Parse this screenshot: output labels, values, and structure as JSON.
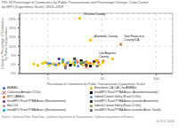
{
  "chart_data": {
    "type": "scatter",
    "title": "FIG 18 Percentage of Commuters by Public Transportation and Percentage Change, Color-Coded",
    "subtitle": "by MPO (Logarithmic Scale), 2013–2018",
    "xlabel": "Percentage of Commuters by Public Transportation (Logarithmic Scale)",
    "ylabel": "Change in Percentage of Commuters\nby Public Transportation",
    "source": "Source: California Public Road Data, California Department of Transportation, California Department of Finance",
    "figure_label": "IG 18  IC-13026",
    "log": "x",
    "grid": true,
    "legend": "bottom",
    "xlim": [
      0.3,
      200
    ],
    "ylim": [
      -5,
      28
    ],
    "xticks": [
      1,
      10,
      100
    ],
    "yticks": [
      {
        "value": -5,
        "label": "-5%"
      },
      {
        "value": 0,
        "label": "0%"
      },
      {
        "value": 5,
        "label": "5%"
      },
      {
        "value": 10,
        "label": "10%"
      },
      {
        "value": 15,
        "label": "15%"
      },
      {
        "value": 20,
        "label": "20%"
      },
      {
        "value": 25,
        "label": "25%"
      }
    ],
    "annotations": [
      {
        "text": "Tehama County",
        "x": 3.9,
        "y": 25.5
      },
      {
        "text": "Alameda County",
        "x": 6.2,
        "y": 13.5
      },
      {
        "text": "San Francisco\nCounty/CA",
        "x": 22.0,
        "y": 11.5
      },
      {
        "text": "Los Angeles\nCounty",
        "x": 7.5,
        "y": 2.2
      }
    ],
    "series": [
      {
        "name": "AMBAG",
        "color": "#4472c4",
        "marker": "circle",
        "x": [
          1.1,
          1.3,
          1.6,
          1.4
        ],
        "values": [
          0.4,
          0.1,
          0.5,
          -0.2
        ]
      },
      {
        "name": "Calaveras/Amador COGs",
        "color": "#ff0000",
        "marker": "x",
        "x": [
          3.3,
          5.1,
          8.1
        ],
        "values": [
          2.1,
          -1.4,
          2.1
        ]
      },
      {
        "name": "MTC (ABAG)",
        "color": "#ed7d31",
        "marker": "circle",
        "x": [
          3.5,
          4.2,
          5.1,
          6.0,
          8.5,
          10.5,
          22.0
        ],
        "values": [
          1.2,
          0.9,
          1.5,
          0.7,
          1.1,
          1.9,
          11.0
        ]
      },
      {
        "name": "IntraMPO Rural PTBA Areas (Nonattainment)",
        "color": "#7030a0",
        "marker": "circle",
        "x": [
          1.6,
          2.1,
          4.1
        ],
        "values": [
          3.1,
          -0.9,
          0.6
        ]
      },
      {
        "name": "MaCOG",
        "color": "#a5a5a5",
        "marker": "circle",
        "x": [
          2.2,
          2.6,
          3.1
        ],
        "values": [
          0.4,
          -0.3,
          0.6
        ]
      },
      {
        "name": "IntraMPO Rural PTBA Areas (Nonattainment)",
        "color": "#00b0f0",
        "marker": "circle",
        "x": [
          1.9,
          3.1,
          5.1
        ],
        "values": [
          2.6,
          1.1,
          0.1
        ]
      },
      {
        "name": "Elsewhere CA (CAL) by AMBAG",
        "color": "#ffc000",
        "marker": "circle",
        "x": [
          0.55,
          0.65,
          0.8,
          0.9,
          1.05,
          1.25,
          1.55,
          1.85,
          2.05,
          2.45,
          2.9,
          3.85,
          4.4,
          5.4,
          6.1,
          6.9,
          7.8,
          8.9,
          10.2,
          15.5
        ],
        "values": [
          0.3,
          -0.6,
          0.6,
          1.1,
          -0.4,
          0.3,
          -0.1,
          0.9,
          -0.2,
          1.3,
          0.6,
          25.2,
          -0.4,
          0.6,
          13.3,
          0.4,
          2.1,
          -0.3,
          1.1,
          3.1
        ]
      },
      {
        "name": "IntraMPO Rural PTBA Areas (Attainment/outside)",
        "color": "#000000",
        "marker": "square",
        "x": [
          2.6,
          4.1,
          6.1
        ],
        "values": [
          -0.4,
          2.1,
          -0.9
        ]
      },
      {
        "name": "Indeed Central Valley (Rural COGs)",
        "color": "#5b9bd5",
        "marker": "circle",
        "x": [
          1.0,
          1.4,
          2.3,
          3.6
        ],
        "values": [
          0.6,
          -0.2,
          0.9,
          -0.9
        ]
      },
      {
        "name": "IntraMPO Rural PTBA Areas (outside Attainment)",
        "color": "#404040",
        "marker": "square",
        "x": [
          3.1,
          5.1,
          7.1
        ],
        "values": [
          3.1,
          -0.4,
          1.6
        ]
      },
      {
        "name": "Indeed Central Valley (Rural COGs)",
        "color": "#70ad47",
        "marker": "circle",
        "x": [
          1.9,
          3.1,
          4.1
        ],
        "values": [
          1.6,
          -0.4,
          1.1
        ]
      },
      {
        "name": "IntraMPO Rural PTBA Areas (outside Attain. South)",
        "color": "#7f7f7f",
        "marker": "square",
        "x": [
          2.1,
          4.6,
          8.1
        ],
        "values": [
          -1.9,
          1.1,
          -0.9
        ]
      }
    ]
  }
}
